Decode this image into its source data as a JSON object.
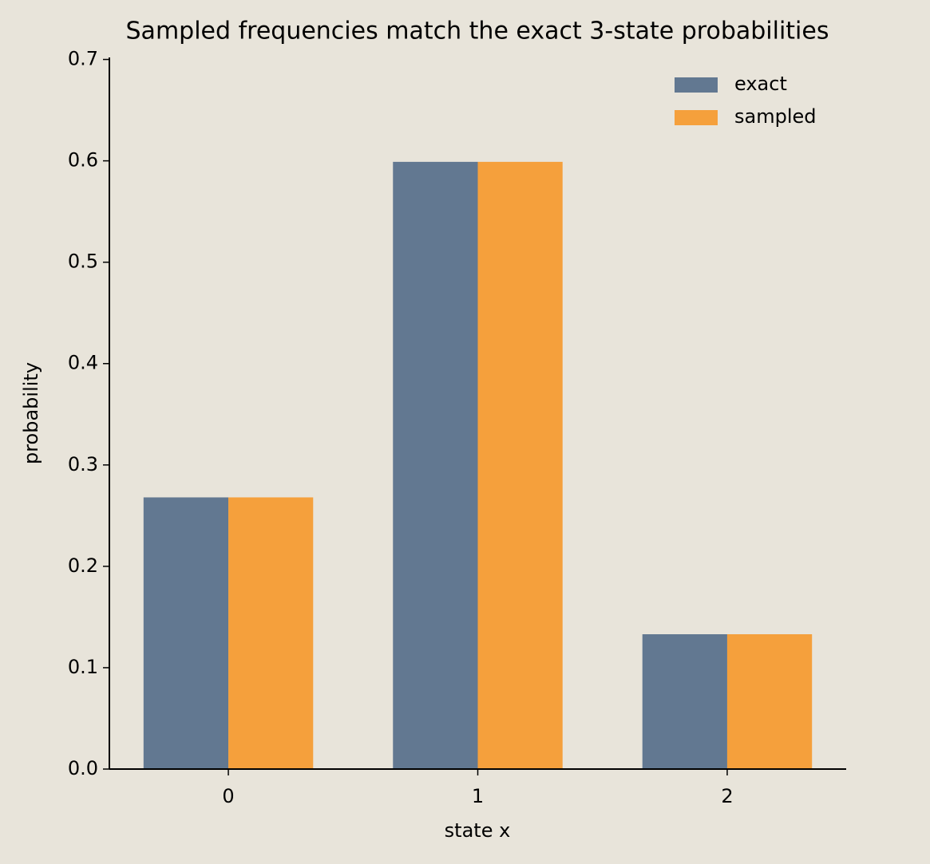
{
  "chart_data": {
    "type": "bar",
    "title": "Sampled frequencies match the exact 3-state probabilities",
    "x_label": "state x",
    "y_label": "probability",
    "categories": [
      "0",
      "1",
      "2"
    ],
    "series": [
      {
        "name": "exact",
        "color": "#627891",
        "values": [
          0.268,
          0.599,
          0.133
        ]
      },
      {
        "name": "sampled",
        "color": "#f5a03c",
        "values": [
          0.268,
          0.599,
          0.133
        ]
      }
    ],
    "ylim": [
      0,
      0.702
    ],
    "yticks": [
      {
        "value": 0,
        "label": "0.0"
      },
      {
        "value": 0.1,
        "label": "0.1"
      },
      {
        "value": 0.2,
        "label": "0.2"
      },
      {
        "value": 0.3,
        "label": "0.3"
      },
      {
        "value": 0.4,
        "label": "0.4"
      },
      {
        "value": 0.5,
        "label": "0.5"
      },
      {
        "value": 0.6,
        "label": "0.6"
      },
      {
        "value": 0.7,
        "label": "0.7"
      }
    ],
    "legend": "upper right",
    "grid": false
  }
}
